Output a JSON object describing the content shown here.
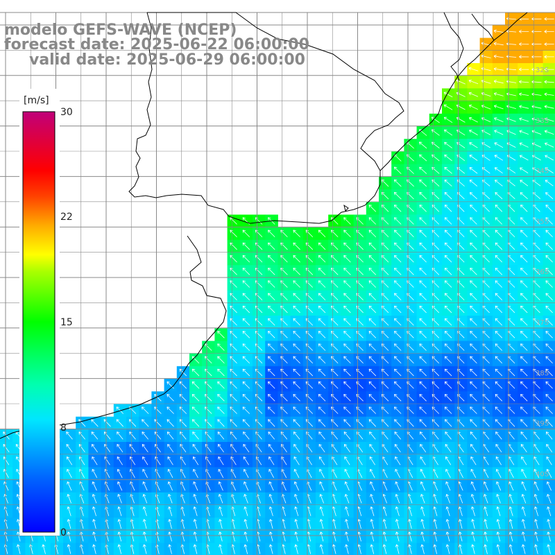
{
  "title": {
    "line1": "modelo GEFS-WAVE (NCEP)",
    "line2": "forecast date: 2025-06-22 06:00:00",
    "line3": "valid date: 2025-06-29 06:00:00"
  },
  "colorbar": {
    "unit": "[m/s]",
    "min": 0,
    "max": 30,
    "tick_labels": [
      "30",
      "22",
      "15",
      "8",
      "0"
    ],
    "tick_values": [
      30,
      22,
      15,
      8,
      0
    ]
  },
  "latitude_labels": [
    "32S",
    "33S",
    "34S",
    "35S",
    "36S",
    "37S",
    "38S",
    "39S",
    "40S"
  ],
  "colors": {
    "grid": "#888888",
    "coast": "#000000",
    "title": "#888888",
    "arrow": "#ffffff"
  }
}
